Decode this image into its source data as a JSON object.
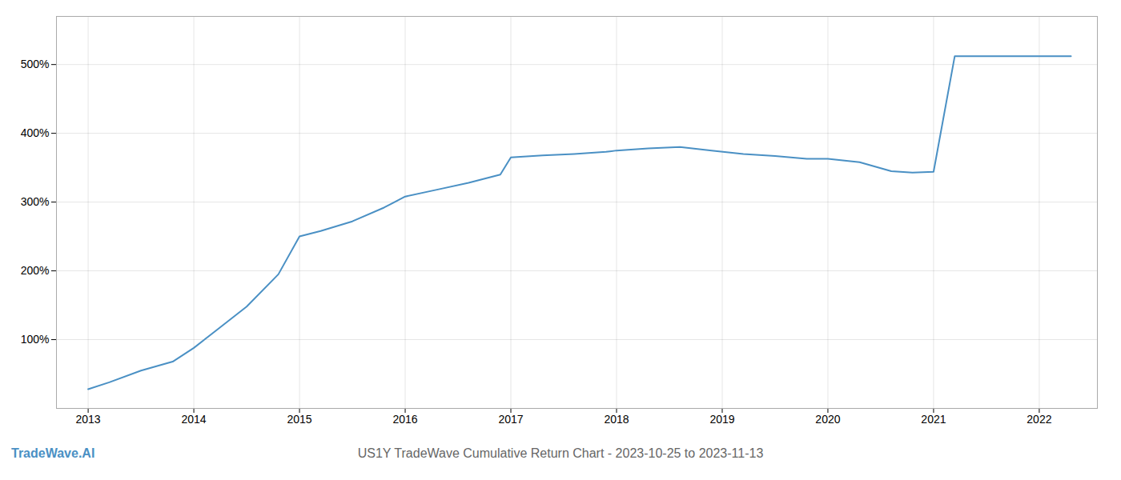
{
  "chart_data": {
    "type": "line",
    "title": "US1Y TradeWave Cumulative Return Chart - 2023-10-25 to 2023-11-13",
    "annotations": [
      "TradeWave.AI"
    ],
    "x": [
      2013.0,
      2013.2,
      2013.5,
      2013.8,
      2014.0,
      2014.2,
      2014.5,
      2014.8,
      2015.0,
      2015.2,
      2015.5,
      2015.8,
      2016.0,
      2016.3,
      2016.6,
      2016.9,
      2017.0,
      2017.3,
      2017.6,
      2017.9,
      2018.0,
      2018.3,
      2018.6,
      2018.9,
      2019.2,
      2019.5,
      2019.8,
      2020.0,
      2020.3,
      2020.6,
      2020.8,
      2021.0,
      2021.2,
      2021.5,
      2021.8,
      2022.0,
      2022.3
    ],
    "values": [
      28,
      38,
      55,
      68,
      88,
      112,
      148,
      195,
      250,
      258,
      272,
      292,
      308,
      318,
      328,
      340,
      365,
      368,
      370,
      373,
      375,
      378,
      380,
      375,
      370,
      367,
      363,
      363,
      358,
      345,
      343,
      344,
      512,
      512,
      512,
      512,
      512
    ],
    "color": "#4a90c4",
    "xlim": [
      2012.7,
      2022.55
    ],
    "xticks": [
      2013,
      2014,
      2015,
      2016,
      2017,
      2018,
      2019,
      2020,
      2021,
      2022
    ],
    "ylim": [
      0,
      570
    ],
    "yticks": [
      {
        "value": 100,
        "label": "100%"
      },
      {
        "value": 200,
        "label": "200%"
      },
      {
        "value": 300,
        "label": "300%"
      },
      {
        "value": 400,
        "label": "400%"
      },
      {
        "value": 500,
        "label": "500%"
      }
    ],
    "grid": true
  }
}
